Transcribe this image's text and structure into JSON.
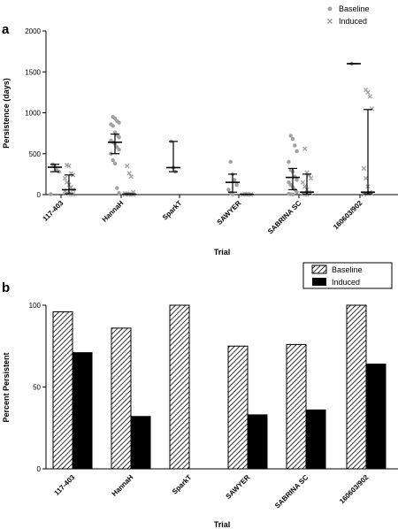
{
  "chart_data": [
    {
      "panel": "a",
      "type": "scatter",
      "xlabel": "Trial",
      "ylabel": "Persistence (days)",
      "ylim": [
        0,
        2000
      ],
      "yticks": [
        0,
        500,
        1000,
        1500,
        2000
      ],
      "legend_position": "top-right",
      "categories": [
        "117-403",
        "HannaH",
        "SparkT",
        "SAWYER",
        "SABRINA SC",
        "160603/902"
      ],
      "series": [
        {
          "name": "Baseline",
          "color": "#a0a0a0",
          "marker": "circle",
          "points": [
            [
              0,
              370
            ],
            [
              0,
              340
            ],
            [
              0,
              300
            ],
            [
              0,
              280
            ],
            [
              0,
              5
            ],
            [
              1,
              950
            ],
            [
              1,
              930
            ],
            [
              1,
              900
            ],
            [
              1,
              880
            ],
            [
              1,
              860
            ],
            [
              1,
              840
            ],
            [
              1,
              760
            ],
            [
              1,
              730
            ],
            [
              1,
              700
            ],
            [
              1,
              660
            ],
            [
              1,
              640
            ],
            [
              1,
              620
            ],
            [
              1,
              580
            ],
            [
              1,
              550
            ],
            [
              1,
              500
            ],
            [
              1,
              420
            ],
            [
              1,
              380
            ],
            [
              1,
              80
            ],
            [
              1,
              20
            ],
            [
              2,
              650
            ],
            [
              2,
              330
            ],
            [
              2,
              280
            ],
            [
              3,
              400
            ],
            [
              3,
              250
            ],
            [
              3,
              180
            ],
            [
              3,
              120
            ],
            [
              3,
              60
            ],
            [
              3,
              20
            ],
            [
              3,
              5
            ],
            [
              4,
              720
            ],
            [
              4,
              680
            ],
            [
              4,
              600
            ],
            [
              4,
              530
            ],
            [
              4,
              400
            ],
            [
              4,
              300
            ],
            [
              4,
              280
            ],
            [
              4,
              220
            ],
            [
              4,
              180
            ],
            [
              4,
              150
            ],
            [
              4,
              120
            ],
            [
              4,
              90
            ],
            [
              4,
              60
            ],
            [
              4,
              30
            ],
            [
              4,
              10
            ],
            [
              4,
              5
            ],
            [
              4,
              3
            ],
            [
              5,
              1600
            ]
          ],
          "summary": [
            {
              "category": "117-403",
              "median": 335,
              "lower": 280,
              "upper": 370
            },
            {
              "category": "HannaH",
              "median": 640,
              "lower": 500,
              "upper": 740
            },
            {
              "category": "SparkT",
              "median": 330,
              "lower": 280,
              "upper": 650
            },
            {
              "category": "SAWYER",
              "median": 150,
              "lower": 30,
              "upper": 250
            },
            {
              "category": "SABRINA SC",
              "median": 210,
              "lower": 60,
              "upper": 320
            },
            {
              "category": "160603/902",
              "median": 1600,
              "lower": 1600,
              "upper": 1600
            }
          ]
        },
        {
          "name": "Induced",
          "color": "#a0a0a0",
          "marker": "cross",
          "points": [
            [
              0,
              360
            ],
            [
              0,
              350
            ],
            [
              0,
              260
            ],
            [
              0,
              240
            ],
            [
              0,
              200
            ],
            [
              0,
              150
            ],
            [
              0,
              120
            ],
            [
              0,
              90
            ],
            [
              0,
              60
            ],
            [
              0,
              40
            ],
            [
              0,
              20
            ],
            [
              0,
              10
            ],
            [
              0,
              5
            ],
            [
              0,
              3
            ],
            [
              1,
              350
            ],
            [
              1,
              260
            ],
            [
              1,
              220
            ],
            [
              1,
              30
            ],
            [
              1,
              15
            ],
            [
              1,
              10
            ],
            [
              1,
              5
            ],
            [
              1,
              3
            ],
            [
              1,
              2
            ],
            [
              1,
              1
            ],
            [
              3,
              5
            ],
            [
              3,
              4
            ],
            [
              3,
              3
            ],
            [
              3,
              2
            ],
            [
              3,
              1
            ],
            [
              4,
              560
            ],
            [
              4,
              270
            ],
            [
              4,
              240
            ],
            [
              4,
              200
            ],
            [
              4,
              150
            ],
            [
              4,
              100
            ],
            [
              4,
              60
            ],
            [
              4,
              30
            ],
            [
              4,
              15
            ],
            [
              4,
              8
            ],
            [
              4,
              5
            ],
            [
              4,
              2
            ],
            [
              5,
              1280
            ],
            [
              5,
              1250
            ],
            [
              5,
              1200
            ],
            [
              5,
              1050
            ],
            [
              5,
              320
            ],
            [
              5,
              200
            ],
            [
              5,
              100
            ],
            [
              5,
              30
            ],
            [
              5,
              10
            ],
            [
              5,
              3
            ]
          ],
          "summary": [
            {
              "category": "117-403",
              "median": 60,
              "lower": 10,
              "upper": 240
            },
            {
              "category": "HannaH",
              "median": 5,
              "lower": 2,
              "upper": 10
            },
            {
              "category": "SAWYER",
              "median": 3,
              "lower": 1,
              "upper": 4
            },
            {
              "category": "SABRINA SC",
              "median": 30,
              "lower": 5,
              "upper": 250
            },
            {
              "category": "160603/902",
              "median": 30,
              "lower": 10,
              "upper": 1040
            }
          ]
        }
      ]
    },
    {
      "panel": "b",
      "type": "bar",
      "xlabel": "Trial",
      "ylabel": "Percent Persistent",
      "ylim": [
        0,
        100
      ],
      "yticks": [
        0,
        50,
        100
      ],
      "legend_position": "top-right",
      "categories": [
        "117-403",
        "HannaH",
        "SparkT",
        "SAWYER",
        "SABRINA SC",
        "160603/902"
      ],
      "series": [
        {
          "name": "Baseline",
          "fill": "hatched",
          "values": [
            96,
            86,
            100,
            75,
            76,
            100
          ]
        },
        {
          "name": "Induced",
          "fill": "#000000",
          "values": [
            71,
            32,
            null,
            33,
            36,
            64
          ]
        }
      ]
    }
  ]
}
